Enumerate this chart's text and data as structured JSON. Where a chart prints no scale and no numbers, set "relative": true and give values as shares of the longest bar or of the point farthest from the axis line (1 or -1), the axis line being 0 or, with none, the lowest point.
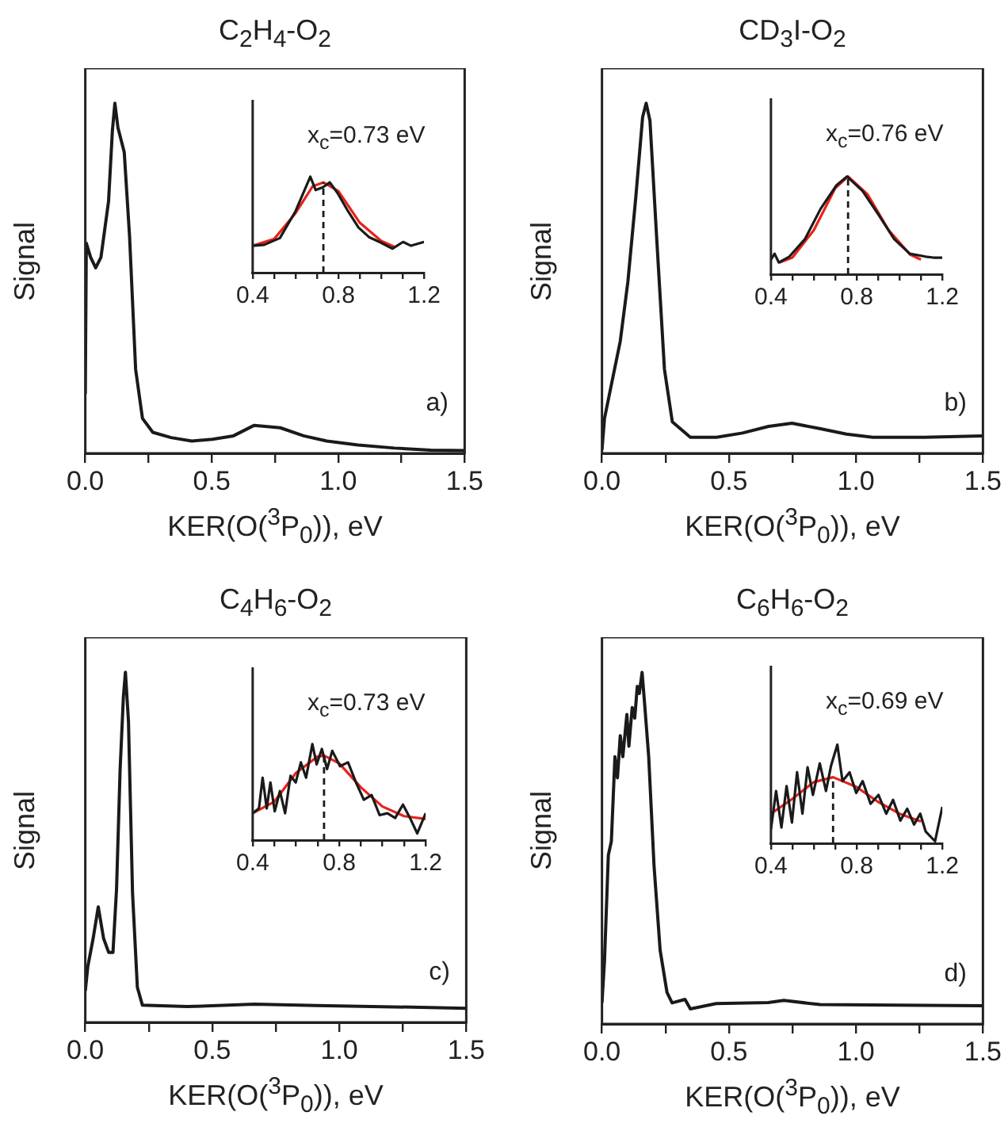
{
  "chart_data": [
    {
      "type": "line",
      "title": "C$_{2}$H$_{4}$-O$_{2}$",
      "xlabel": "KER(O($^{3}$P$_{0}$)), eV",
      "ylabel": "Signal",
      "annotations": [
        "a)"
      ],
      "relative": true,
      "tick_labels": "x",
      "xlim": [
        0,
        1.5
      ],
      "xticks": [
        {
          "value": 0,
          "label": "0.0"
        },
        {
          "value": 0.25,
          "label": null
        },
        {
          "value": 0.5,
          "label": "0.5"
        },
        {
          "value": 0.75,
          "label": null
        },
        {
          "value": 1,
          "label": "1.0"
        },
        {
          "value": 1.25,
          "label": null
        },
        {
          "value": 1.5,
          "label": "1.5"
        }
      ],
      "x": [
        0,
        0.004,
        0.021,
        0.041,
        0.062,
        0.092,
        0.107,
        0.117,
        0.129,
        0.154,
        0.175,
        0.199,
        0.226,
        0.267,
        0.339,
        0.421,
        0.503,
        0.586,
        0.668,
        0.771,
        0.863,
        0.955,
        1.079,
        1.223,
        1.366,
        1.5
      ],
      "values": [
        0.17,
        0.6,
        0.56,
        0.53,
        0.56,
        0.72,
        0.92,
        1.0,
        0.93,
        0.86,
        0.62,
        0.24,
        0.1,
        0.06,
        0.045,
        0.035,
        0.04,
        0.05,
        0.08,
        0.073,
        0.05,
        0.035,
        0.024,
        0.015,
        0.009,
        0.008
      ],
      "color": "#1a1a1a"
    },
    {
      "type": "line",
      "annotations": [
        "x$_{c}$=0.73 eV"
      ],
      "relative": true,
      "tick_labels": "x",
      "xlim": [
        0.4,
        1.2
      ],
      "xticks": [
        {
          "value": 0.4,
          "label": "0.4"
        },
        {
          "value": 0.5,
          "label": null
        },
        {
          "value": 0.6,
          "label": null
        },
        {
          "value": 0.7,
          "label": null
        },
        {
          "value": 0.8,
          "label": "0.8"
        },
        {
          "value": 0.9,
          "label": null
        },
        {
          "value": 1,
          "label": null
        },
        {
          "value": 1.1,
          "label": null
        },
        {
          "value": 1.2,
          "label": "1.2"
        }
      ],
      "ref_lines": [
        {
          "axis": "x",
          "value": 0.73,
          "line_style": "dashed",
          "color": "#1a1a1a"
        }
      ],
      "series": [
        {
          "color": "#1a1a1a",
          "x": [
            0.4,
            0.454,
            0.527,
            0.6,
            0.669,
            0.694,
            0.728,
            0.76,
            0.796,
            0.845,
            0.894,
            0.943,
            0.992,
            1.053,
            1.102,
            1.139,
            1.2
          ],
          "values": [
            0.28,
            0.29,
            0.36,
            0.64,
            1.0,
            0.86,
            0.89,
            0.94,
            0.83,
            0.64,
            0.47,
            0.37,
            0.32,
            0.25,
            0.32,
            0.28,
            0.32
          ]
        },
        {
          "color": "#e8221a",
          "x": [
            0.4,
            0.5,
            0.6,
            0.68,
            0.73,
            0.8,
            0.9,
            1.0,
            1.06
          ],
          "values": [
            0.28,
            0.35,
            0.62,
            0.9,
            0.94,
            0.85,
            0.52,
            0.33,
            0.27
          ]
        }
      ]
    },
    {
      "type": "line",
      "title": "CD$_{3}$I-O$_{2}$",
      "xlabel": "KER(O($^{3}$P$_{0}$)), eV",
      "ylabel": "Signal",
      "annotations": [
        "b)"
      ],
      "relative": true,
      "tick_labels": "x",
      "xlim": [
        0,
        1.5
      ],
      "xticks": [
        {
          "value": 0,
          "label": "0.0"
        },
        {
          "value": 0.25,
          "label": null
        },
        {
          "value": 0.5,
          "label": "0.5"
        },
        {
          "value": 0.75,
          "label": null
        },
        {
          "value": 1,
          "label": "1.0"
        },
        {
          "value": 1.25,
          "label": null
        },
        {
          "value": 1.5,
          "label": "1.5"
        }
      ],
      "x": [
        0,
        0.01,
        0.041,
        0.072,
        0.102,
        0.133,
        0.16,
        0.174,
        0.189,
        0.215,
        0.246,
        0.277,
        0.348,
        0.451,
        0.553,
        0.656,
        0.748,
        0.861,
        0.963,
        1.066,
        1.27,
        1.5
      ],
      "values": [
        0.01,
        0.1,
        0.21,
        0.32,
        0.49,
        0.73,
        0.96,
        1.0,
        0.95,
        0.62,
        0.24,
        0.09,
        0.046,
        0.046,
        0.058,
        0.077,
        0.086,
        0.07,
        0.055,
        0.046,
        0.046,
        0.05
      ],
      "color": "#1a1a1a"
    },
    {
      "type": "line",
      "annotations": [
        "x$_{c}$=0.76 eV"
      ],
      "relative": true,
      "tick_labels": "x",
      "xlim": [
        0.4,
        1.2
      ],
      "xticks": [
        {
          "value": 0.4,
          "label": "0.4"
        },
        {
          "value": 0.5,
          "label": null
        },
        {
          "value": 0.6,
          "label": null
        },
        {
          "value": 0.7,
          "label": null
        },
        {
          "value": 0.8,
          "label": "0.8"
        },
        {
          "value": 0.9,
          "label": null
        },
        {
          "value": 1,
          "label": null
        },
        {
          "value": 1.1,
          "label": null
        },
        {
          "value": 1.2,
          "label": "1.2"
        }
      ],
      "ref_lines": [
        {
          "axis": "x",
          "value": 0.76,
          "line_style": "dashed",
          "color": "#1a1a1a"
        }
      ],
      "series": [
        {
          "color": "#1a1a1a",
          "x": [
            0.4,
            0.417,
            0.437,
            0.486,
            0.559,
            0.632,
            0.706,
            0.755,
            0.828,
            0.902,
            0.975,
            1.048,
            1.122,
            1.158,
            1.2
          ],
          "values": [
            0.15,
            0.21,
            0.12,
            0.18,
            0.36,
            0.67,
            0.91,
            1.0,
            0.85,
            0.61,
            0.36,
            0.21,
            0.18,
            0.17,
            0.17
          ]
        },
        {
          "color": "#e8221a",
          "x": [
            0.44,
            0.5,
            0.6,
            0.7,
            0.76,
            0.85,
            0.95,
            1.05,
            1.1
          ],
          "values": [
            0.12,
            0.17,
            0.45,
            0.88,
            1.0,
            0.82,
            0.45,
            0.2,
            0.15
          ]
        }
      ]
    },
    {
      "type": "line",
      "title": "C$_{4}$H$_{6}$-O$_{2}$",
      "xlabel": "KER(O($^{3}$P$_{0}$)), eV",
      "ylabel": "Signal",
      "annotations": [
        "c)"
      ],
      "relative": true,
      "tick_labels": "x",
      "xlim": [
        0,
        1.5
      ],
      "xticks": [
        {
          "value": 0,
          "label": "0.0"
        },
        {
          "value": 0.25,
          "label": null
        },
        {
          "value": 0.5,
          "label": "0.5"
        },
        {
          "value": 0.75,
          "label": null
        },
        {
          "value": 1,
          "label": "1.0"
        },
        {
          "value": 1.25,
          "label": null
        },
        {
          "value": 1.5,
          "label": "1.5"
        }
      ],
      "x": [
        0,
        0.01,
        0.031,
        0.051,
        0.072,
        0.092,
        0.109,
        0.123,
        0.137,
        0.15,
        0.158,
        0.17,
        0.186,
        0.205,
        0.225,
        0.4,
        0.666,
        0.912,
        1.32,
        1.5
      ],
      "values": [
        0.09,
        0.16,
        0.24,
        0.33,
        0.24,
        0.2,
        0.2,
        0.38,
        0.72,
        0.93,
        1.0,
        0.86,
        0.37,
        0.1,
        0.049,
        0.045,
        0.052,
        0.048,
        0.043,
        0.04
      ],
      "color": "#1a1a1a"
    },
    {
      "type": "line",
      "annotations": [
        "x$_{c}$=0.73 eV"
      ],
      "relative": true,
      "tick_labels": "x",
      "xlim": [
        0.4,
        1.2
      ],
      "xticks": [
        {
          "value": 0.4,
          "label": "0.4"
        },
        {
          "value": 0.5,
          "label": null
        },
        {
          "value": 0.6,
          "label": null
        },
        {
          "value": 0.7,
          "label": null
        },
        {
          "value": 0.8,
          "label": "0.8"
        },
        {
          "value": 0.9,
          "label": null
        },
        {
          "value": 1,
          "label": null
        },
        {
          "value": 1.1,
          "label": null
        },
        {
          "value": 1.2,
          "label": "1.2"
        }
      ],
      "ref_lines": [
        {
          "axis": "x",
          "value": 0.73,
          "line_style": "dashed",
          "color": "#1a1a1a"
        }
      ],
      "series": [
        {
          "color": "#1a1a1a",
          "x": [
            0.4,
            0.429,
            0.446,
            0.465,
            0.482,
            0.502,
            0.526,
            0.55,
            0.575,
            0.599,
            0.623,
            0.647,
            0.676,
            0.696,
            0.72,
            0.744,
            0.768,
            0.804,
            0.841,
            0.878,
            0.914,
            0.95,
            0.987,
            1.023,
            1.059,
            1.095,
            1.132,
            1.161,
            1.2
          ],
          "values": [
            0.28,
            0.33,
            0.65,
            0.33,
            0.6,
            0.3,
            0.51,
            0.28,
            0.67,
            0.6,
            0.81,
            0.65,
            1.0,
            0.79,
            0.95,
            0.74,
            0.93,
            0.77,
            0.81,
            0.6,
            0.42,
            0.47,
            0.26,
            0.28,
            0.23,
            0.37,
            0.21,
            0.07,
            0.28
          ]
        },
        {
          "color": "#e8221a",
          "x": [
            0.4,
            0.5,
            0.6,
            0.7,
            0.73,
            0.8,
            0.9,
            1.0,
            1.1,
            1.2
          ],
          "values": [
            0.28,
            0.4,
            0.7,
            0.87,
            0.88,
            0.8,
            0.55,
            0.35,
            0.25,
            0.22
          ]
        }
      ]
    },
    {
      "type": "line",
      "title": "C$_{6}$H$_{6}$-O$_{2}$",
      "xlabel": "KER(O($^{3}$P$_{0}$)), eV",
      "ylabel": "Signal",
      "annotations": [
        "d)"
      ],
      "relative": true,
      "tick_labels": "x",
      "xlim": [
        0,
        1.5
      ],
      "xticks": [
        {
          "value": 0,
          "label": "0.0"
        },
        {
          "value": 0.25,
          "label": null
        },
        {
          "value": 0.5,
          "label": "0.5"
        },
        {
          "value": 0.75,
          "label": null
        },
        {
          "value": 1,
          "label": "1.0"
        },
        {
          "value": 1.25,
          "label": null
        },
        {
          "value": 1.5,
          "label": "1.5"
        }
      ],
      "x": [
        0,
        0.01,
        0.025,
        0.037,
        0.051,
        0.061,
        0.072,
        0.082,
        0.098,
        0.106,
        0.119,
        0.129,
        0.139,
        0.147,
        0.158,
        0.168,
        0.184,
        0.205,
        0.229,
        0.256,
        0.276,
        0.327,
        0.348,
        0.45,
        0.655,
        0.716,
        0.859,
        1.269,
        1.5
      ],
      "values": [
        0.06,
        0.18,
        0.48,
        0.52,
        0.76,
        0.7,
        0.82,
        0.76,
        0.88,
        0.79,
        0.9,
        0.87,
        0.96,
        0.94,
        1.0,
        0.91,
        0.76,
        0.45,
        0.21,
        0.09,
        0.06,
        0.07,
        0.043,
        0.058,
        0.061,
        0.067,
        0.055,
        0.053,
        0.052
      ],
      "color": "#1a1a1a"
    },
    {
      "type": "line",
      "annotations": [
        "x$_{c}$=0.69 eV"
      ],
      "relative": true,
      "tick_labels": "x",
      "xlim": [
        0.4,
        1.2
      ],
      "xticks": [
        {
          "value": 0.4,
          "label": "0.4"
        },
        {
          "value": 0.5,
          "label": null
        },
        {
          "value": 0.6,
          "label": null
        },
        {
          "value": 0.7,
          "label": null
        },
        {
          "value": 0.8,
          "label": "0.8"
        },
        {
          "value": 0.9,
          "label": null
        },
        {
          "value": 1,
          "label": null
        },
        {
          "value": 1.1,
          "label": null
        },
        {
          "value": 1.2,
          "label": "1.2"
        }
      ],
      "ref_lines": [
        {
          "axis": "x",
          "value": 0.69,
          "line_style": "dashed",
          "color": "#1a1a1a"
        }
      ],
      "series": [
        {
          "color": "#1a1a1a",
          "x": [
            0.4,
            0.424,
            0.449,
            0.473,
            0.498,
            0.522,
            0.547,
            0.571,
            0.596,
            0.628,
            0.657,
            0.681,
            0.71,
            0.734,
            0.767,
            0.798,
            0.828,
            0.865,
            0.902,
            0.938,
            0.97,
            1.004,
            1.036,
            1.068,
            1.097,
            1.122,
            1.166,
            1.2
          ],
          "values": [
            0.14,
            0.53,
            0.16,
            0.58,
            0.21,
            0.72,
            0.3,
            0.77,
            0.49,
            0.81,
            0.53,
            0.79,
            1.0,
            0.63,
            0.72,
            0.51,
            0.63,
            0.4,
            0.49,
            0.3,
            0.44,
            0.23,
            0.35,
            0.19,
            0.3,
            0.12,
            0.02,
            0.37
          ]
        },
        {
          "color": "#e8221a",
          "x": [
            0.4,
            0.5,
            0.6,
            0.69,
            0.8,
            0.9,
            1.0,
            1.1
          ],
          "values": [
            0.3,
            0.45,
            0.62,
            0.67,
            0.57,
            0.42,
            0.3,
            0.22
          ]
        }
      ]
    }
  ]
}
